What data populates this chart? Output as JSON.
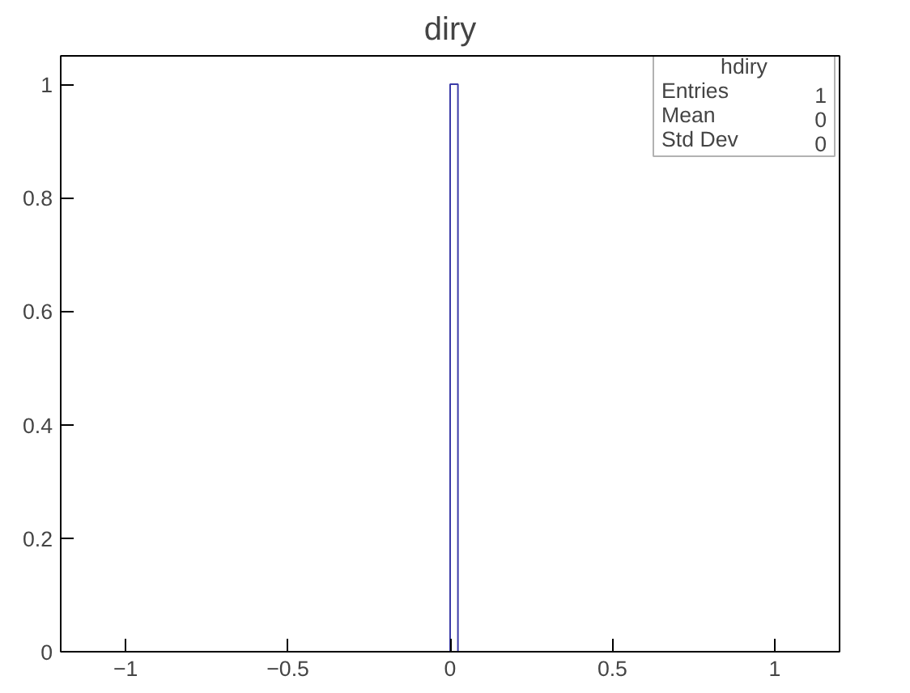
{
  "chart_data": {
    "type": "histogram",
    "title": "diry",
    "bins": [
      -1.2,
      0,
      0.024,
      1.2
    ],
    "values": [
      0,
      1,
      0
    ],
    "color": "#3c3ca8",
    "xlim": [
      -1.2,
      1.2
    ],
    "xticks": [
      {
        "value": -1,
        "label": "−1"
      },
      {
        "value": -0.5,
        "label": "−0.5"
      },
      0,
      0.5,
      1
    ],
    "ylim": [
      0,
      1.05
    ],
    "yticks": [
      0,
      0.2,
      0.4,
      0.6,
      0.8,
      1
    ],
    "grid": false,
    "annotations": [
      "hdiry",
      "Entries",
      "1",
      "Mean",
      "0",
      "Std Dev",
      "0"
    ]
  }
}
